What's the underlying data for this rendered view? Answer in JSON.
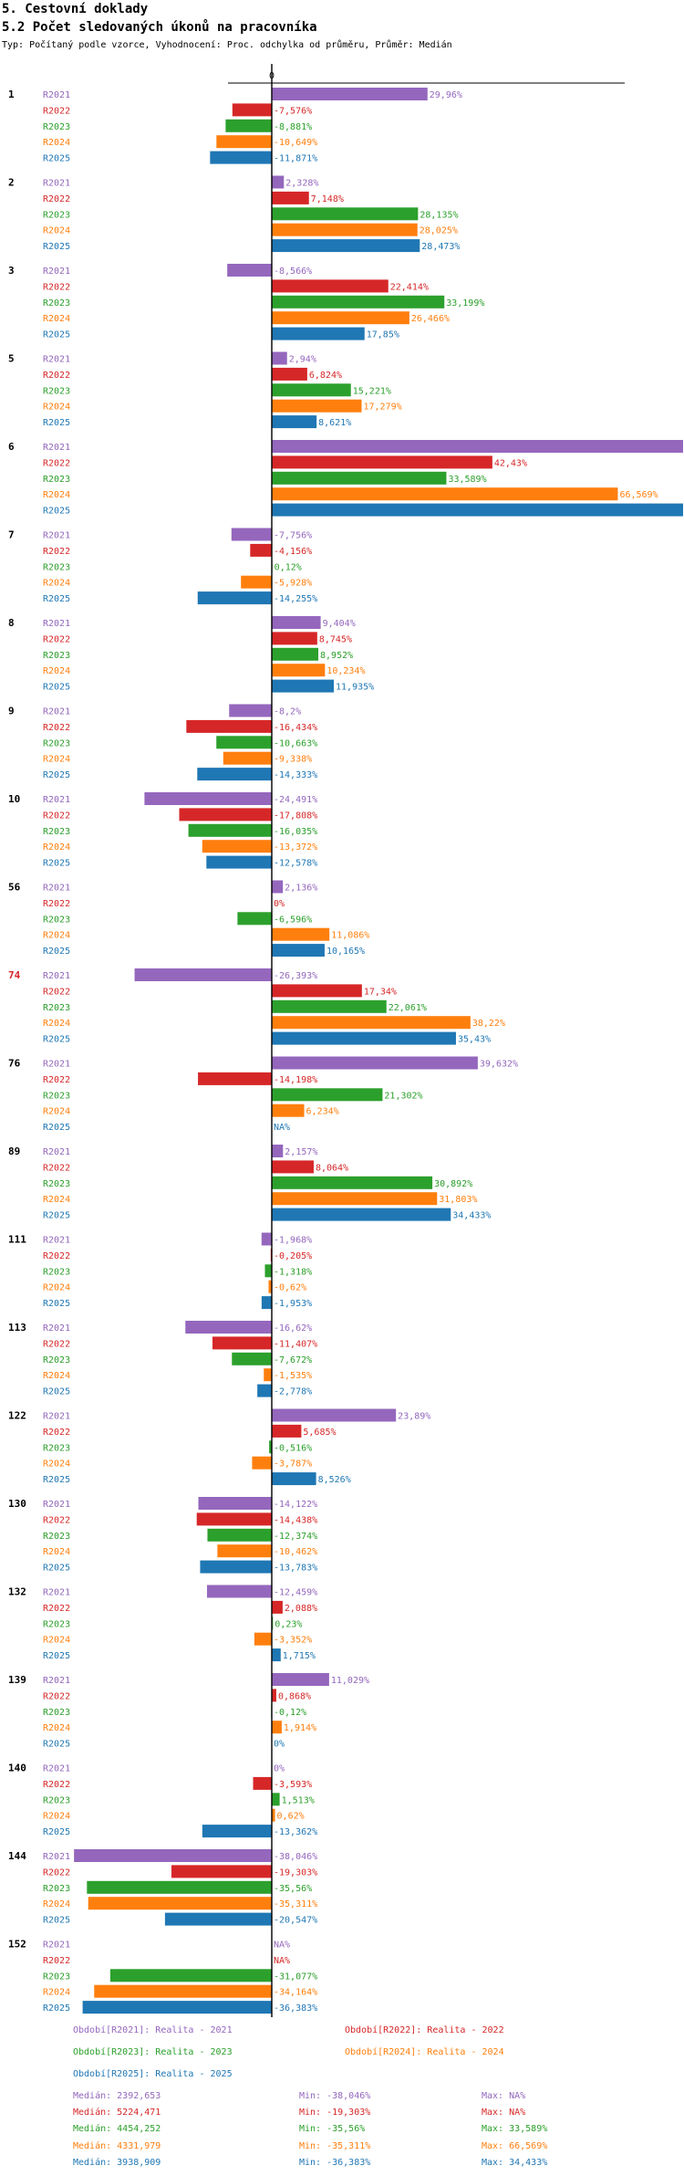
{
  "header": {
    "title": "5. Cestovní doklady",
    "subtitle": "5.2 Počet sledovaných úkonů na pracovníka",
    "description": "Typ: Počítaný podle vzorce, Vyhodnocení: Proc. odchylka od průměru, Průměr: Medián"
  },
  "colors": {
    "R2021": "#9467bd",
    "R2022": "#d62728",
    "R2023": "#2ca02c",
    "R2024": "#ff7f0e",
    "R2025": "#1f77b4"
  },
  "chart_data": {
    "type": "bar",
    "orientation": "horizontal",
    "zero_label": "0",
    "series_names": [
      "R2021",
      "R2022",
      "R2023",
      "R2024",
      "R2025"
    ],
    "groups": [
      {
        "label": "1",
        "highlight": false,
        "values": [
          29.96,
          -7.576,
          -8.881,
          -10.649,
          -11.871
        ],
        "labels": [
          "29,96%",
          "-7,576%",
          "-8,881%",
          "-10,649%",
          "-11,871%"
        ]
      },
      {
        "label": "2",
        "highlight": false,
        "values": [
          2.328,
          7.148,
          28.135,
          28.025,
          28.473
        ],
        "labels": [
          "2,328%",
          "7,148%",
          "28,135%",
          "28,025%",
          "28,473%"
        ]
      },
      {
        "label": "3",
        "highlight": false,
        "values": [
          -8.566,
          22.414,
          33.199,
          26.466,
          17.85
        ],
        "labels": [
          "-8,566%",
          "22,414%",
          "33,199%",
          "26,466%",
          "17,85%"
        ]
      },
      {
        "label": "5",
        "highlight": false,
        "values": [
          2.94,
          6.824,
          15.221,
          17.279,
          8.621
        ],
        "labels": [
          "2,94%",
          "6,824%",
          "15,221%",
          "17,279%",
          "8,621%"
        ]
      },
      {
        "label": "6",
        "highlight": false,
        "values": [
          80,
          42.43,
          33.589,
          66.569,
          80
        ],
        "labels": [
          "",
          "42,43%",
          "33,589%",
          "66,569%",
          ""
        ]
      },
      {
        "label": "7",
        "highlight": false,
        "values": [
          -7.756,
          -4.156,
          0.12,
          -5.928,
          -14.255
        ],
        "labels": [
          "-7,756%",
          "-4,156%",
          "0,12%",
          "-5,928%",
          "-14,255%"
        ]
      },
      {
        "label": "8",
        "highlight": false,
        "values": [
          9.404,
          8.745,
          8.952,
          10.234,
          11.935
        ],
        "labels": [
          "9,404%",
          "8,745%",
          "8,952%",
          "10,234%",
          "11,935%"
        ]
      },
      {
        "label": "9",
        "highlight": false,
        "values": [
          -8.2,
          -16.434,
          -10.663,
          -9.338,
          -14.333
        ],
        "labels": [
          "-8,2%",
          "-16,434%",
          "-10,663%",
          "-9,338%",
          "-14,333%"
        ]
      },
      {
        "label": "10",
        "highlight": false,
        "values": [
          -24.491,
          -17.808,
          -16.035,
          -13.372,
          -12.578
        ],
        "labels": [
          "-24,491%",
          "-17,808%",
          "-16,035%",
          "-13,372%",
          "-12,578%"
        ]
      },
      {
        "label": "56",
        "highlight": false,
        "values": [
          2.136,
          0,
          -6.596,
          11.086,
          10.165
        ],
        "labels": [
          "2,136%",
          "0%",
          "-6,596%",
          "11,086%",
          "10,165%"
        ]
      },
      {
        "label": "74",
        "highlight": true,
        "values": [
          -26.393,
          17.34,
          22.061,
          38.22,
          35.43
        ],
        "labels": [
          "-26,393%",
          "17,34%",
          "22,061%",
          "38,22%",
          "35,43%"
        ]
      },
      {
        "label": "76",
        "highlight": false,
        "values": [
          39.632,
          -14.198,
          21.302,
          6.234,
          null
        ],
        "labels": [
          "39,632%",
          "-14,198%",
          "21,302%",
          "6,234%",
          "NA%"
        ]
      },
      {
        "label": "89",
        "highlight": false,
        "values": [
          2.157,
          8.064,
          30.892,
          31.803,
          34.433
        ],
        "labels": [
          "2,157%",
          "8,064%",
          "30,892%",
          "31,803%",
          "34,433%"
        ]
      },
      {
        "label": "111",
        "highlight": false,
        "values": [
          -1.968,
          -0.205,
          -1.318,
          -0.62,
          -1.953
        ],
        "labels": [
          "-1,968%",
          "-0,205%",
          "-1,318%",
          "-0,62%",
          "-1,953%"
        ]
      },
      {
        "label": "113",
        "highlight": false,
        "values": [
          -16.62,
          -11.407,
          -7.672,
          -1.535,
          -2.778
        ],
        "labels": [
          "-16,62%",
          "-11,407%",
          "-7,672%",
          "-1,535%",
          "-2,778%"
        ]
      },
      {
        "label": "122",
        "highlight": false,
        "values": [
          23.89,
          5.685,
          -0.516,
          -3.787,
          8.526
        ],
        "labels": [
          "23,89%",
          "5,685%",
          "-0,516%",
          "-3,787%",
          "8,526%"
        ]
      },
      {
        "label": "130",
        "highlight": false,
        "values": [
          -14.122,
          -14.438,
          -12.374,
          -10.462,
          -13.783
        ],
        "labels": [
          "-14,122%",
          "-14,438%",
          "-12,374%",
          "-10,462%",
          "-13,783%"
        ]
      },
      {
        "label": "132",
        "highlight": false,
        "values": [
          -12.459,
          2.088,
          0.23,
          -3.352,
          1.715
        ],
        "labels": [
          "-12,459%",
          "2,088%",
          "0,23%",
          "-3,352%",
          "1,715%"
        ]
      },
      {
        "label": "139",
        "highlight": false,
        "values": [
          11.029,
          0.868,
          -0.12,
          1.914,
          0
        ],
        "labels": [
          "11,029%",
          "0,868%",
          "-0,12%",
          "1,914%",
          "0%"
        ]
      },
      {
        "label": "140",
        "highlight": false,
        "values": [
          0,
          -3.593,
          1.513,
          0.62,
          -13.362
        ],
        "labels": [
          "0%",
          "-3,593%",
          "1,513%",
          "0,62%",
          "-13,362%"
        ]
      },
      {
        "label": "144",
        "highlight": false,
        "values": [
          -38.046,
          -19.303,
          -35.56,
          -35.311,
          -20.547
        ],
        "labels": [
          "-38,046%",
          "-19,303%",
          "-35,56%",
          "-35,311%",
          "-20,547%"
        ]
      },
      {
        "label": "152",
        "highlight": false,
        "values": [
          null,
          null,
          -31.077,
          -34.164,
          -36.383
        ],
        "labels": [
          "NA%",
          "NA%",
          "-31,077%",
          "-34,164%",
          "-36,383%"
        ]
      }
    ]
  },
  "legend": {
    "periods": [
      {
        "series": "R2021",
        "text": "Období[R2021]: Realita - 2021"
      },
      {
        "series": "R2022",
        "text": "Období[R2022]: Realita - 2022"
      },
      {
        "series": "R2023",
        "text": "Období[R2023]: Realita - 2023"
      },
      {
        "series": "R2024",
        "text": "Období[R2024]: Realita - 2024"
      },
      {
        "series": "R2025",
        "text": "Období[R2025]: Realita - 2025"
      }
    ],
    "stats": [
      {
        "series": "R2021",
        "median": "Medián: 2392,653",
        "min": "Min: -38,046%",
        "max": "Max: NA%"
      },
      {
        "series": "R2022",
        "median": "Medián: 5224,471",
        "min": "Min: -19,303%",
        "max": "Max: NA%"
      },
      {
        "series": "R2023",
        "median": "Medián: 4454,252",
        "min": "Min: -35,56%",
        "max": "Max: 33,589%"
      },
      {
        "series": "R2024",
        "median": "Medián: 4331,979",
        "min": "Min: -35,311%",
        "max": "Max: 66,569%"
      },
      {
        "series": "R2025",
        "median": "Medián: 3938,909",
        "min": "Min: -36,383%",
        "max": "Max: 34,433%"
      }
    ]
  }
}
